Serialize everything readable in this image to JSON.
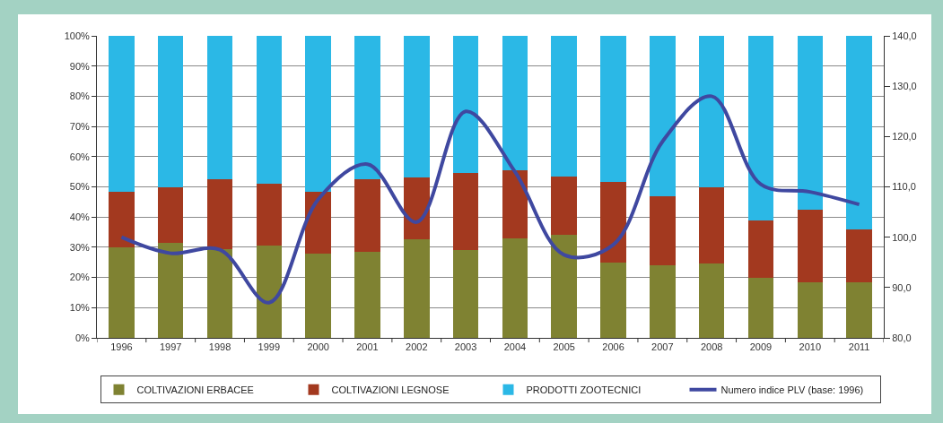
{
  "chart_data": {
    "type": "bar",
    "stacked": true,
    "categories": [
      "1996",
      "1997",
      "1998",
      "1999",
      "2000",
      "2001",
      "2002",
      "2003",
      "2004",
      "2005",
      "2006",
      "2007",
      "2008",
      "2009",
      "2010",
      "2011"
    ],
    "series": [
      {
        "name": "COLTIVAZIONI ERBACEE",
        "color": "#7f8232",
        "values": [
          30,
          31.5,
          29.5,
          30.5,
          28,
          28.5,
          32.5,
          29,
          33,
          34,
          25,
          24,
          24.5,
          20,
          18.5,
          18.5
        ]
      },
      {
        "name": "COLTIVAZIONI LEGNOSE",
        "color": "#a3391f",
        "values": [
          18.5,
          18.5,
          23,
          20.5,
          20.5,
          24,
          20.5,
          25.5,
          22.5,
          19.5,
          26.5,
          23,
          25.5,
          19,
          24,
          17.5
        ]
      },
      {
        "name": "PRODOTTI ZOOTECNICI",
        "color": "#2bb8e6",
        "values": [
          51.5,
          50,
          47.5,
          49,
          51.5,
          47.5,
          47,
          45.5,
          44.5,
          46.5,
          48.5,
          53,
          50,
          61,
          57.5,
          64
        ]
      },
      {
        "name": "Numero indice PLV (base: 1996)",
        "type": "line",
        "axis": "y2",
        "color": "#3f48a0",
        "values": [
          100,
          96.8,
          97.5,
          87,
          107.5,
          114.5,
          103,
          125,
          113,
          96.5,
          98.5,
          119,
          128,
          110.5,
          109,
          106.5
        ]
      }
    ],
    "ylim": [
      0,
      100
    ],
    "yticks": [
      {
        "value": 0,
        "label": "0%"
      },
      {
        "value": 10,
        "label": "10%"
      },
      {
        "value": 20,
        "label": "20%"
      },
      {
        "value": 30,
        "label": "30%"
      },
      {
        "value": 40,
        "label": "40%"
      },
      {
        "value": 50,
        "label": "50%"
      },
      {
        "value": 60,
        "label": "60%"
      },
      {
        "value": 70,
        "label": "70%"
      },
      {
        "value": 80,
        "label": "80%"
      },
      {
        "value": 90,
        "label": "90%"
      },
      {
        "value": 100,
        "label": "100%"
      }
    ],
    "y2lim": [
      80,
      140
    ],
    "y2ticks": [
      {
        "value": 80,
        "label": "80,0"
      },
      {
        "value": 90,
        "label": "90,0"
      },
      {
        "value": 100,
        "label": "100,0"
      },
      {
        "value": 110,
        "label": "110,0"
      },
      {
        "value": 120,
        "label": "120,0"
      },
      {
        "value": 130,
        "label": "130,0"
      },
      {
        "value": 140,
        "label": "140,0"
      }
    ],
    "grid": "y",
    "legend": "bottom",
    "line_style": "solid"
  }
}
